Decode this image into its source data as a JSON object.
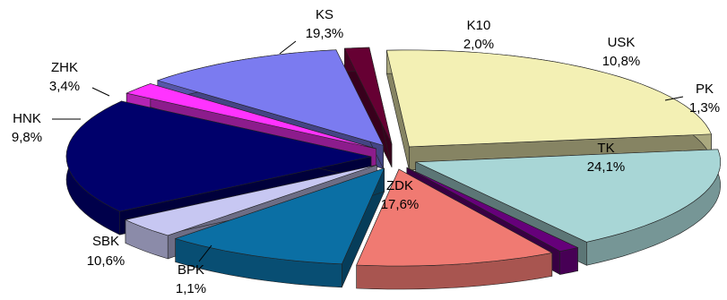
{
  "chart_data": {
    "type": "pie",
    "style": "3d-exploded",
    "unit": "%",
    "slices": [
      {
        "name": "K10",
        "value": 2.0,
        "label": "K10",
        "value_label": "2,0%",
        "color": "#ff33ff"
      },
      {
        "name": "USK",
        "value": 10.8,
        "label": "USK",
        "value_label": "10,8%",
        "color": "#7b7bf0"
      },
      {
        "name": "PK",
        "value": 1.3,
        "label": "PK",
        "value_label": "1,3%",
        "color": "#660033"
      },
      {
        "name": "TK",
        "value": 24.1,
        "label": "TK",
        "value_label": "24,1%",
        "color": "#f3f0b4"
      },
      {
        "name": "ZDK",
        "value": 17.6,
        "label": "ZDK",
        "value_label": "17,6%",
        "color": "#a8d6d6"
      },
      {
        "name": "BPK",
        "value": 1.1,
        "label": "BPK",
        "value_label": "1,1%",
        "color": "#66007a"
      },
      {
        "name": "SBK",
        "value": 10.6,
        "label": "SBK",
        "value_label": "10,6%",
        "color": "#f07a72"
      },
      {
        "name": "HNK",
        "value": 9.8,
        "label": "HNK",
        "value_label": "9,8%",
        "color": "#0b6fa4"
      },
      {
        "name": "ZHK",
        "value": 3.4,
        "label": "ZHK",
        "value_label": "3,4%",
        "color": "#c7c7f2"
      },
      {
        "name": "KS",
        "value": 19.3,
        "label": "KS",
        "value_label": "19,3%",
        "color": "#00006b"
      }
    ]
  }
}
